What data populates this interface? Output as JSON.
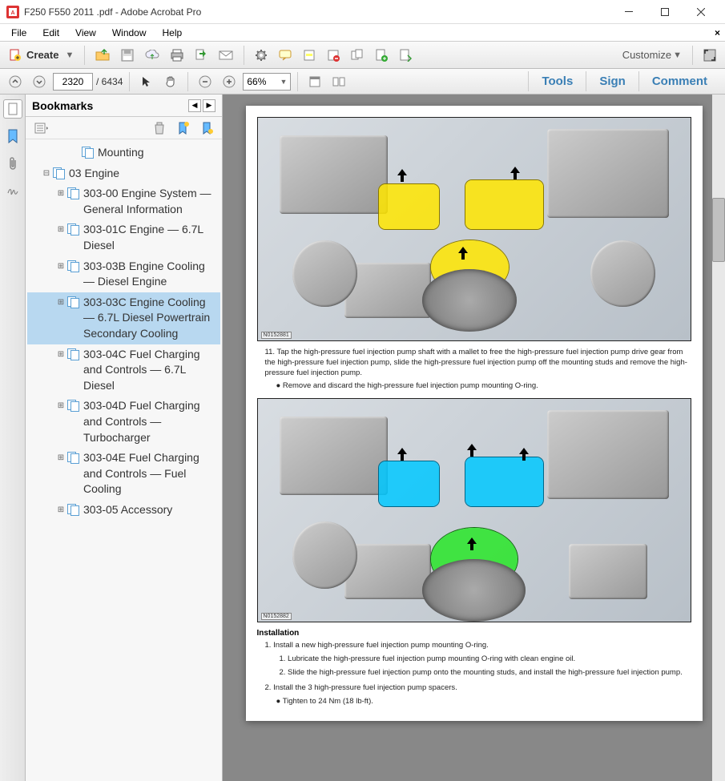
{
  "window": {
    "title": "F250 F550 2011 .pdf - Adobe Acrobat Pro"
  },
  "menubar": {
    "items": [
      "File",
      "Edit",
      "View",
      "Window",
      "Help"
    ]
  },
  "toolbar1": {
    "create": "Create",
    "customize": "Customize"
  },
  "toolbar2": {
    "current_page": "2320",
    "total_pages": "/  6434",
    "zoom": "66%",
    "tabs": {
      "tools": "Tools",
      "sign": "Sign",
      "comment": "Comment"
    }
  },
  "bookmarks": {
    "title": "Bookmarks",
    "items": [
      {
        "label": "Mounting",
        "indent": 3,
        "expand": "",
        "selected": false
      },
      {
        "label": "03 Engine",
        "indent": 1,
        "expand": "⊟",
        "selected": false
      },
      {
        "label": "303-00 Engine System — General Information",
        "indent": 2,
        "expand": "⊞",
        "selected": false
      },
      {
        "label": "303-01C Engine — 6.7L Diesel",
        "indent": 2,
        "expand": "⊞",
        "selected": false
      },
      {
        "label": "303-03B Engine Cooling — Diesel Engine",
        "indent": 2,
        "expand": "⊞",
        "selected": false
      },
      {
        "label": "303-03C Engine Cooling — 6.7L Diesel Powertrain Secondary Cooling",
        "indent": 2,
        "expand": "⊞",
        "selected": true
      },
      {
        "label": "303-04C Fuel Charging and Controls — 6.7L Diesel",
        "indent": 2,
        "expand": "⊞",
        "selected": false
      },
      {
        "label": "303-04D Fuel Charging and Controls — Turbocharger",
        "indent": 2,
        "expand": "⊞",
        "selected": false
      },
      {
        "label": "303-04E Fuel Charging and Controls — Fuel Cooling",
        "indent": 2,
        "expand": "⊞",
        "selected": false
      },
      {
        "label": "303-05 Accessory",
        "indent": 2,
        "expand": "⊞",
        "selected": false
      }
    ]
  },
  "document": {
    "img1_label": "N0152881",
    "step11_num": "11.",
    "step11": "Tap the high-pressure fuel injection pump shaft with a mallet to free the high-pressure fuel injection pump drive gear from the high-pressure fuel injection pump, slide the high-pressure fuel injection pump off the mounting studs and remove the high-pressure fuel injection pump.",
    "step11_bullet": "● Remove and discard the high-pressure fuel injection pump mounting O-ring.",
    "img2_label": "N0152882",
    "installation_heading": "Installation",
    "inst1_num": "1.",
    "inst1": "Install a new high-pressure fuel injection pump mounting O-ring.",
    "inst1_sub1": "1. Lubricate the high-pressure fuel injection pump mounting O-ring with clean engine oil.",
    "inst1_sub2": "2. Slide the high-pressure fuel injection pump onto the mounting studs, and install the high-pressure fuel injection pump.",
    "inst2_num": "2.",
    "inst2": "Install the 3 high-pressure fuel injection pump spacers.",
    "inst2_bullet": "● Tighten to 24 Nm (18 lb-ft)."
  }
}
